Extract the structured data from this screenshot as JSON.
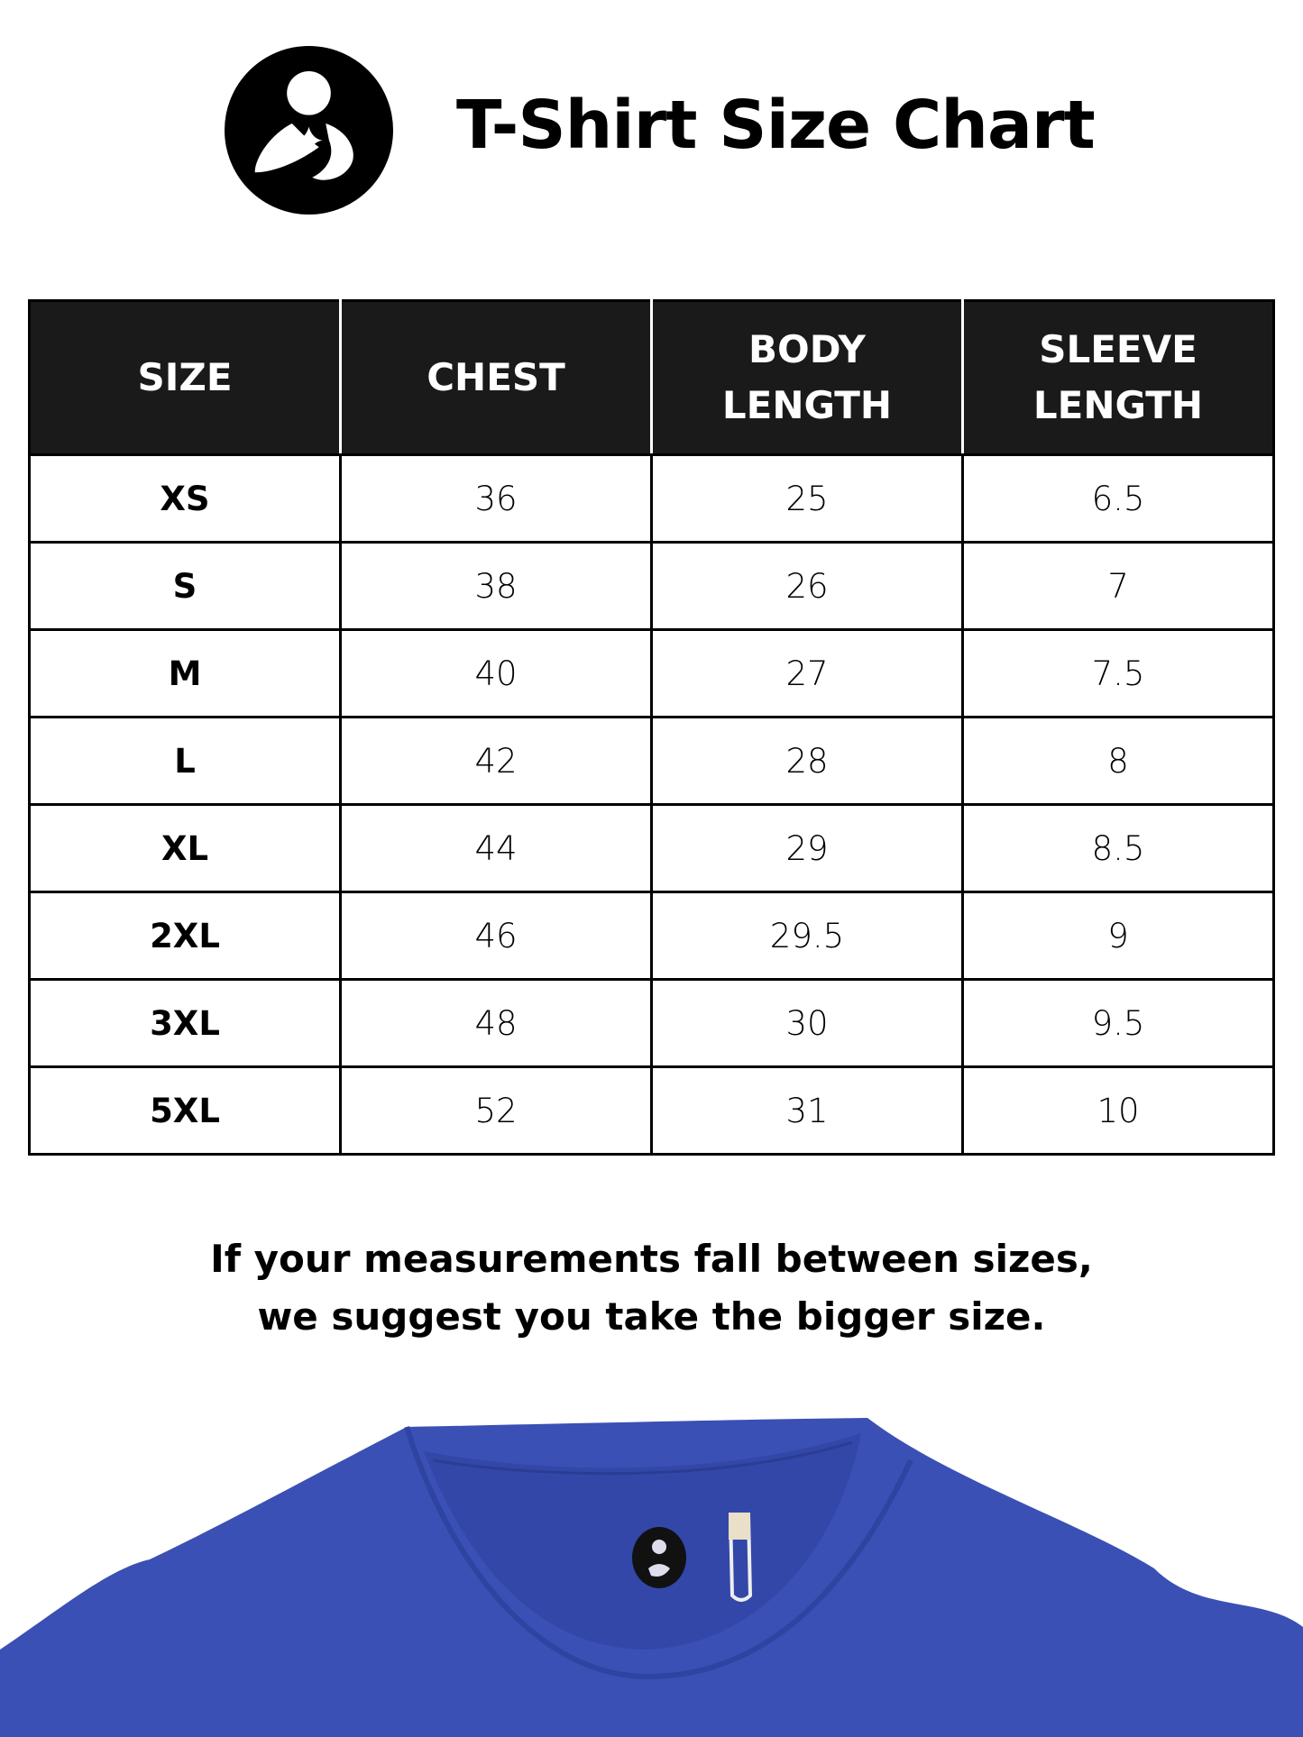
{
  "header": {
    "title": "T-Shirt Size Chart",
    "logo": "mother-and-child-logo"
  },
  "table": {
    "columns": [
      {
        "line1": "SIZE",
        "line2": ""
      },
      {
        "line1": "CHEST",
        "line2": ""
      },
      {
        "line1": "BODY",
        "line2": "LENGTH"
      },
      {
        "line1": "SLEEVE",
        "line2": "LENGTH"
      }
    ],
    "rows": [
      [
        "XS",
        "36",
        "25",
        "6.5"
      ],
      [
        "S",
        "38",
        "26",
        "7"
      ],
      [
        "M",
        "40",
        "27",
        "7.5"
      ],
      [
        "L",
        "42",
        "28",
        "8"
      ],
      [
        "XL",
        "44",
        "29",
        "8.5"
      ],
      [
        "2XL",
        "46",
        "29.5",
        "9"
      ],
      [
        "3XL",
        "48",
        "30",
        "9.5"
      ],
      [
        "5XL",
        "52",
        "31",
        "10"
      ]
    ]
  },
  "note": {
    "line1": "If your measurements fall between sizes,",
    "line2": "we suggest you take the bigger size."
  },
  "colors": {
    "header_bg": "#1a1a1a",
    "shirt": "#3a50b4"
  }
}
